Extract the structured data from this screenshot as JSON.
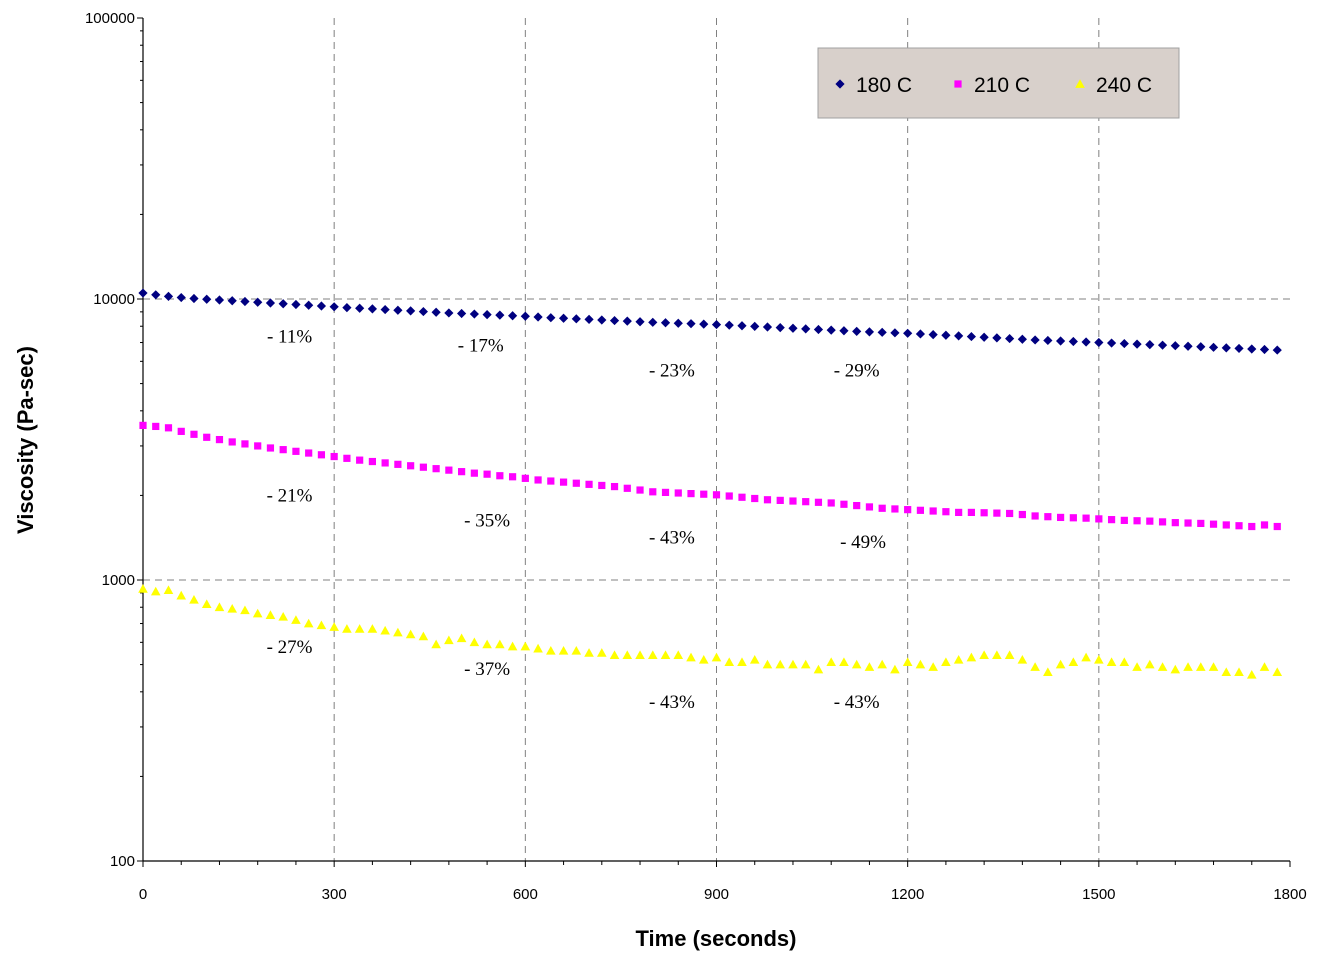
{
  "chart_data": {
    "type": "scatter",
    "title": "",
    "xlabel": "Time (seconds)",
    "ylabel": "Viscosity (Pa-sec)",
    "xlim": [
      0,
      1800
    ],
    "ylim": [
      100,
      100000
    ],
    "y_scale": "log",
    "x_ticks": [
      0,
      300,
      600,
      900,
      1200,
      1500,
      1800
    ],
    "y_ticks": [
      100,
      1000,
      10000,
      100000
    ],
    "x_tick_labels": [
      "0",
      "300",
      "600",
      "900",
      "1200",
      "1500",
      "1800"
    ],
    "y_tick_labels": [
      "100",
      "1000",
      "10000",
      "100000"
    ],
    "grid": "dashed, major ticks",
    "legend_position": "top-right",
    "series": [
      {
        "name": "180 C",
        "color": "#000080",
        "marker": "diamond",
        "x": [
          0,
          20,
          40,
          60,
          80,
          100,
          120,
          140,
          160,
          180,
          200,
          220,
          240,
          260,
          280,
          300,
          320,
          340,
          360,
          380,
          400,
          420,
          440,
          460,
          480,
          500,
          520,
          540,
          560,
          580,
          600,
          620,
          640,
          660,
          680,
          700,
          720,
          740,
          760,
          780,
          800,
          820,
          840,
          860,
          880,
          900,
          920,
          940,
          960,
          980,
          1000,
          1020,
          1040,
          1060,
          1080,
          1100,
          1120,
          1140,
          1160,
          1180,
          1200,
          1220,
          1240,
          1260,
          1280,
          1300,
          1320,
          1340,
          1360,
          1380,
          1400,
          1420,
          1440,
          1460,
          1480,
          1500,
          1520,
          1540,
          1560,
          1580,
          1600,
          1620,
          1640,
          1660,
          1680,
          1700,
          1720,
          1740,
          1760,
          1780
        ],
        "y": [
          10500,
          10350,
          10220,
          10120,
          10040,
          9980,
          9920,
          9860,
          9800,
          9740,
          9680,
          9620,
          9560,
          9500,
          9440,
          9380,
          9320,
          9270,
          9220,
          9170,
          9120,
          9070,
          9020,
          8970,
          8920,
          8880,
          8840,
          8800,
          8760,
          8720,
          8680,
          8630,
          8580,
          8540,
          8500,
          8460,
          8420,
          8380,
          8340,
          8300,
          8260,
          8230,
          8200,
          8170,
          8140,
          8110,
          8070,
          8030,
          7990,
          7950,
          7910,
          7870,
          7830,
          7790,
          7750,
          7710,
          7670,
          7640,
          7610,
          7580,
          7550,
          7510,
          7470,
          7430,
          7390,
          7350,
          7310,
          7270,
          7230,
          7190,
          7150,
          7120,
          7090,
          7060,
          7030,
          7000,
          6970,
          6940,
          6910,
          6880,
          6850,
          6820,
          6790,
          6760,
          6730,
          6700,
          6670,
          6640,
          6610,
          6580
        ]
      },
      {
        "name": "210 C",
        "color": "#ff00ff",
        "marker": "square",
        "x": [
          0,
          20,
          40,
          60,
          80,
          100,
          120,
          140,
          160,
          180,
          200,
          220,
          240,
          260,
          280,
          300,
          320,
          340,
          360,
          380,
          400,
          420,
          440,
          460,
          480,
          500,
          520,
          540,
          560,
          580,
          600,
          620,
          640,
          660,
          680,
          700,
          720,
          740,
          760,
          780,
          800,
          820,
          840,
          860,
          880,
          900,
          920,
          940,
          960,
          980,
          1000,
          1020,
          1040,
          1060,
          1080,
          1100,
          1120,
          1140,
          1160,
          1180,
          1200,
          1220,
          1240,
          1260,
          1280,
          1300,
          1320,
          1340,
          1360,
          1380,
          1400,
          1420,
          1440,
          1460,
          1480,
          1500,
          1520,
          1540,
          1560,
          1580,
          1600,
          1620,
          1640,
          1660,
          1680,
          1700,
          1720,
          1740,
          1760,
          1780
        ],
        "y": [
          3550,
          3520,
          3480,
          3380,
          3300,
          3220,
          3160,
          3100,
          3050,
          3000,
          2950,
          2910,
          2870,
          2830,
          2790,
          2750,
          2710,
          2670,
          2640,
          2610,
          2580,
          2550,
          2520,
          2490,
          2460,
          2430,
          2400,
          2380,
          2350,
          2330,
          2300,
          2270,
          2250,
          2230,
          2210,
          2190,
          2170,
          2150,
          2120,
          2090,
          2060,
          2050,
          2040,
          2030,
          2020,
          2010,
          1990,
          1970,
          1950,
          1930,
          1920,
          1910,
          1900,
          1890,
          1880,
          1860,
          1840,
          1820,
          1800,
          1790,
          1780,
          1770,
          1760,
          1750,
          1740,
          1740,
          1735,
          1730,
          1725,
          1710,
          1690,
          1680,
          1670,
          1665,
          1660,
          1650,
          1640,
          1630,
          1625,
          1620,
          1610,
          1600,
          1595,
          1590,
          1580,
          1570,
          1560,
          1550,
          1570,
          1550
        ]
      },
      {
        "name": "240 C",
        "color": "#ffff00",
        "marker": "triangle",
        "x": [
          0,
          20,
          40,
          60,
          80,
          100,
          120,
          140,
          160,
          180,
          200,
          220,
          240,
          260,
          280,
          300,
          320,
          340,
          360,
          380,
          400,
          420,
          440,
          460,
          480,
          500,
          520,
          540,
          560,
          580,
          600,
          620,
          640,
          660,
          680,
          700,
          720,
          740,
          760,
          780,
          800,
          820,
          840,
          860,
          880,
          900,
          920,
          940,
          960,
          980,
          1000,
          1020,
          1040,
          1060,
          1080,
          1100,
          1120,
          1140,
          1160,
          1180,
          1200,
          1220,
          1240,
          1260,
          1280,
          1300,
          1320,
          1340,
          1360,
          1380,
          1400,
          1420,
          1440,
          1460,
          1480,
          1500,
          1520,
          1540,
          1560,
          1580,
          1600,
          1620,
          1640,
          1660,
          1680,
          1700,
          1720,
          1740,
          1760,
          1780
        ],
        "y": [
          930,
          910,
          920,
          880,
          850,
          820,
          800,
          790,
          780,
          760,
          750,
          740,
          720,
          700,
          690,
          680,
          670,
          670,
          670,
          660,
          650,
          640,
          630,
          590,
          610,
          620,
          600,
          590,
          590,
          580,
          580,
          570,
          560,
          560,
          560,
          550,
          550,
          540,
          540,
          540,
          540,
          540,
          540,
          530,
          520,
          530,
          510,
          510,
          520,
          500,
          500,
          500,
          500,
          480,
          510,
          510,
          500,
          490,
          500,
          480,
          510,
          500,
          490,
          510,
          520,
          530,
          540,
          540,
          540,
          520,
          490,
          470,
          500,
          510,
          530,
          520,
          510,
          510,
          490,
          500,
          490,
          480,
          490,
          490,
          490,
          470,
          470,
          460,
          490,
          470
        ]
      }
    ],
    "annotations": [
      {
        "text": "- 11%",
        "x": 230,
        "y": 7000
      },
      {
        "text": "- 17%",
        "x": 530,
        "y": 6500
      },
      {
        "text": "- 23%",
        "x": 830,
        "y": 5300
      },
      {
        "text": "- 29%",
        "x": 1120,
        "y": 5300
      },
      {
        "text": "- 21%",
        "x": 230,
        "y": 1900
      },
      {
        "text": "- 35%",
        "x": 540,
        "y": 1550
      },
      {
        "text": "- 43%",
        "x": 830,
        "y": 1350
      },
      {
        "text": "- 49%",
        "x": 1130,
        "y": 1300
      },
      {
        "text": "- 27%",
        "x": 230,
        "y": 550
      },
      {
        "text": "- 37%",
        "x": 540,
        "y": 460
      },
      {
        "text": "- 43%",
        "x": 830,
        "y": 350
      },
      {
        "text": "- 43%",
        "x": 1120,
        "y": 350
      }
    ]
  }
}
